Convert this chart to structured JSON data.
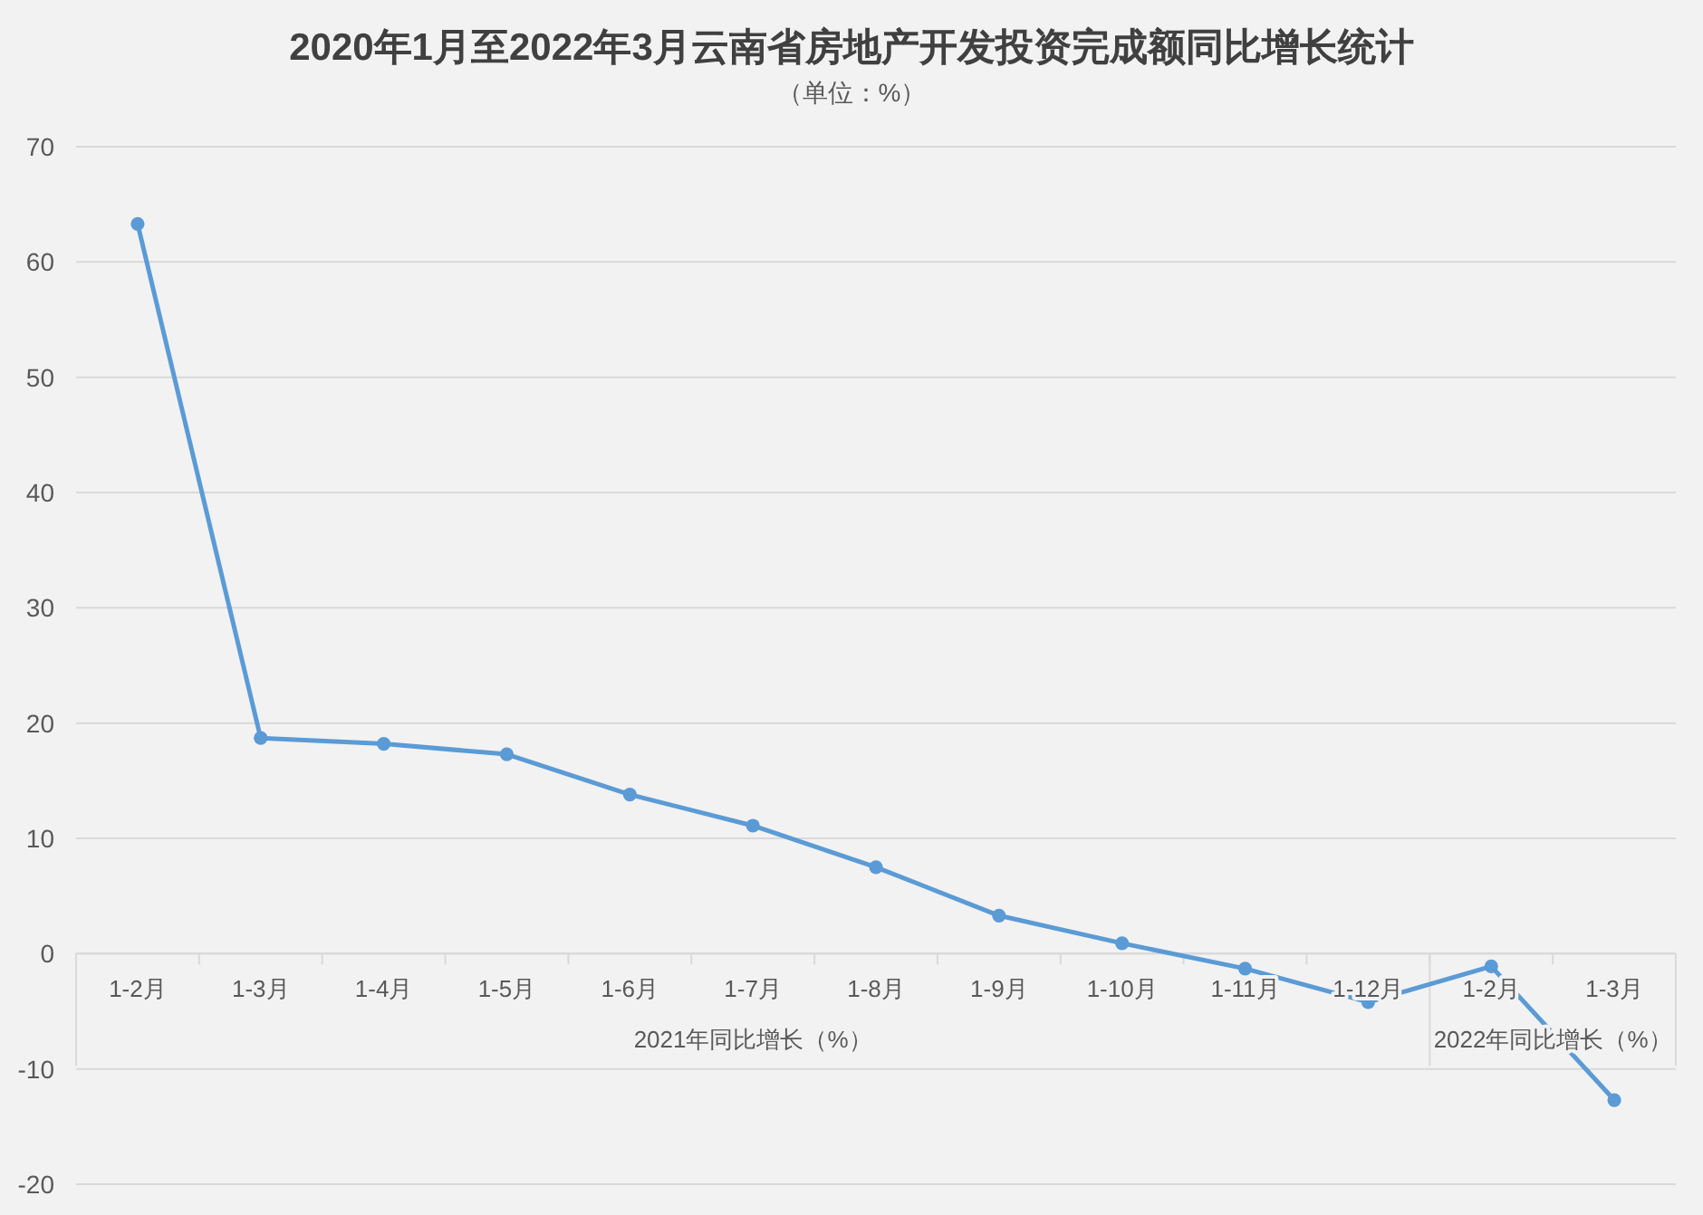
{
  "chart_data": {
    "type": "line",
    "title": "2020年1月至2022年3月云南省房地产开发投资完成额同比增长统计",
    "subtitle": "（单位：%）",
    "categories": [
      "1-2月",
      "1-3月",
      "1-4月",
      "1-5月",
      "1-6月",
      "1-7月",
      "1-8月",
      "1-9月",
      "1-10月",
      "1-11月",
      "1-12月",
      "1-2月",
      "1-3月"
    ],
    "series": [
      {
        "color": "#5b9bd5",
        "values": [
          63.3,
          18.7,
          18.2,
          17.3,
          13.8,
          11.1,
          7.5,
          3.3,
          0.9,
          -1.3,
          -4.2,
          -1.1,
          -12.7
        ]
      }
    ],
    "annotations": [
      "2021年同比增长（%）",
      "2022年同比增长（%）"
    ],
    "ylim": [
      -20,
      70
    ],
    "yticks": [
      -20,
      -10,
      0,
      10,
      20,
      30,
      40,
      50,
      60,
      70
    ],
    "grid": "y",
    "marker": "circle",
    "line_style": "solid"
  }
}
